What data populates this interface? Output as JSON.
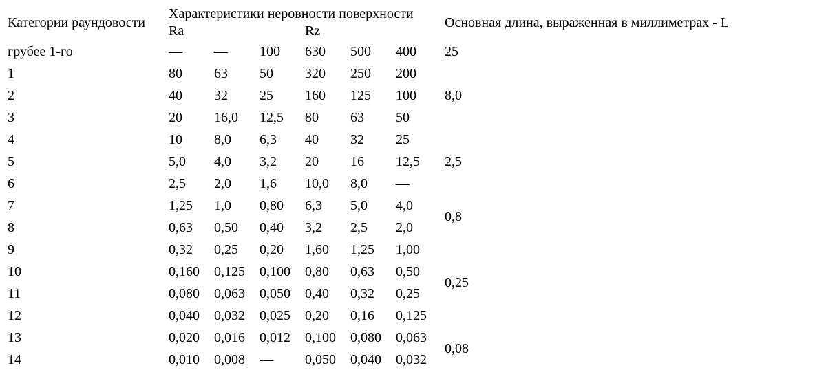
{
  "table": {
    "header": {
      "category": "Категории раундовости",
      "characteristics": "Характеристики неровности поверхности",
      "ra": "Ra",
      "rz": "Rz",
      "base_length": "Основная длина, выраженная в миллиметрах - L"
    },
    "rows": [
      {
        "category": "грубее 1-го",
        "values": [
          "—",
          "—",
          "100",
          "630",
          "500",
          "400"
        ]
      },
      {
        "category": "1",
        "values": [
          "80",
          "63",
          "50",
          "320",
          "250",
          "200"
        ]
      },
      {
        "category": "2",
        "values": [
          "40",
          "32",
          "25",
          "160",
          "125",
          "100"
        ]
      },
      {
        "category": "3",
        "values": [
          "20",
          "16,0",
          "12,5",
          "80",
          "63",
          "50"
        ]
      },
      {
        "category": "4",
        "values": [
          "10",
          "8,0",
          "6,3",
          "40",
          "32",
          "25"
        ]
      },
      {
        "category": "5",
        "values": [
          "5,0",
          "4,0",
          "3,2",
          "20",
          "16",
          "12,5"
        ]
      },
      {
        "category": "6",
        "values": [
          "2,5",
          "2,0",
          "1,6",
          "10,0",
          "8,0",
          "—"
        ]
      },
      {
        "category": "7",
        "values": [
          "1,25",
          "1,0",
          "0,80",
          "6,3",
          "5,0",
          "4,0"
        ]
      },
      {
        "category": "8",
        "values": [
          "0,63",
          "0,50",
          "0,40",
          "3,2",
          "2,5",
          "2,0"
        ]
      },
      {
        "category": "9",
        "values": [
          "0,32",
          "0,25",
          "0,20",
          "1,60",
          "1,25",
          "1,00"
        ]
      },
      {
        "category": "10",
        "values": [
          "0,160",
          "0,125",
          "0,100",
          "0,80",
          "0,63",
          "0,50"
        ]
      },
      {
        "category": "11",
        "values": [
          "0,080",
          "0,063",
          "0,050",
          "0,40",
          "0,32",
          "0,25"
        ]
      },
      {
        "category": "12",
        "values": [
          "0,040",
          "0,032",
          "0,025",
          "0,20",
          "0,16",
          "0,125"
        ]
      },
      {
        "category": "13",
        "values": [
          "0,020",
          "0,016",
          "0,012",
          "0,100",
          "0,080",
          "0,063"
        ]
      },
      {
        "category": "14",
        "values": [
          "0,010",
          "0,008",
          "—",
          "0,050",
          "0,040",
          "0,032"
        ]
      }
    ],
    "base_lengths": [
      {
        "value": "25",
        "start_row": 0,
        "row_count": 1
      },
      {
        "value": "8,0",
        "start_row": 1,
        "row_count": 3
      },
      {
        "value": "2,5",
        "start_row": 4,
        "row_count": 3
      },
      {
        "value": "0,8",
        "start_row": 7,
        "row_count": 2
      },
      {
        "value": "0,25",
        "start_row": 9,
        "row_count": 4
      },
      {
        "value": "0,08",
        "start_row": 13,
        "row_count": 2
      }
    ]
  }
}
